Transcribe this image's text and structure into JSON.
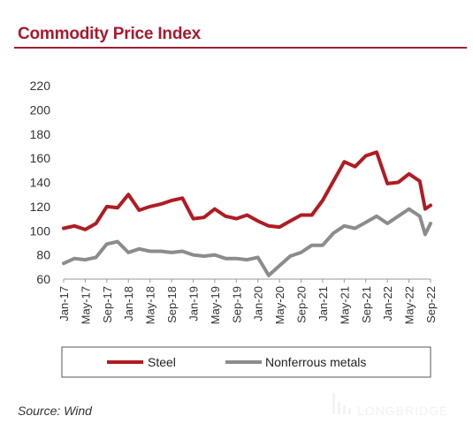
{
  "header": {
    "title": "Commodity Price Index"
  },
  "footer": {
    "source": "Source: Wind"
  },
  "watermark": {
    "text": "LONGBRIDGE"
  },
  "colors": {
    "title": "#a8192e",
    "steel": "#b01c22",
    "nonferrous": "#8c8c8c"
  },
  "chart_data": {
    "type": "line",
    "title": "",
    "xlabel": "",
    "ylabel": "",
    "ylim": [
      60,
      220
    ],
    "yticks": [
      60,
      80,
      100,
      120,
      140,
      160,
      180,
      200,
      220
    ],
    "x_tick_labels": [
      "Jan-17",
      "May-17",
      "Sep-17",
      "Jan-18",
      "May-18",
      "Sep-18",
      "Jan-19",
      "May-19",
      "Sep-19",
      "Jan-20",
      "May-20",
      "Sep-20",
      "Jan-21",
      "May-21",
      "Sep-21",
      "Jan-22",
      "May-22",
      "Sep-22"
    ],
    "x": [
      "Jan-17",
      "Mar-17",
      "May-17",
      "Jul-17",
      "Sep-17",
      "Nov-17",
      "Jan-18",
      "Mar-18",
      "May-18",
      "Jul-18",
      "Sep-18",
      "Nov-18",
      "Jan-19",
      "Mar-19",
      "May-19",
      "Jul-19",
      "Sep-19",
      "Nov-19",
      "Jan-20",
      "Mar-20",
      "May-20",
      "Jul-20",
      "Sep-20",
      "Nov-20",
      "Jan-21",
      "Mar-21",
      "May-21",
      "Jul-21",
      "Sep-21",
      "Nov-21",
      "Jan-22",
      "Mar-22",
      "May-22",
      "Jul-22",
      "Aug-22",
      "Sep-22"
    ],
    "legend": "bottom",
    "grid": false,
    "series": [
      {
        "name": "Steel",
        "values": [
          102,
          104,
          101,
          106,
          120,
          119,
          130,
          117,
          120,
          122,
          125,
          127,
          110,
          111,
          118,
          112,
          110,
          113,
          108,
          104,
          103,
          108,
          113,
          113,
          125,
          141,
          157,
          153,
          162,
          165,
          139,
          140,
          147,
          141,
          118,
          121
        ]
      },
      {
        "name": "Nonferrous metals",
        "values": [
          73,
          77,
          76,
          78,
          89,
          91,
          82,
          85,
          83,
          83,
          82,
          83,
          80,
          79,
          80,
          77,
          77,
          76,
          78,
          63,
          71,
          79,
          82,
          88,
          88,
          98,
          104,
          102,
          107,
          112,
          106,
          112,
          118,
          112,
          97,
          106
        ]
      }
    ]
  }
}
